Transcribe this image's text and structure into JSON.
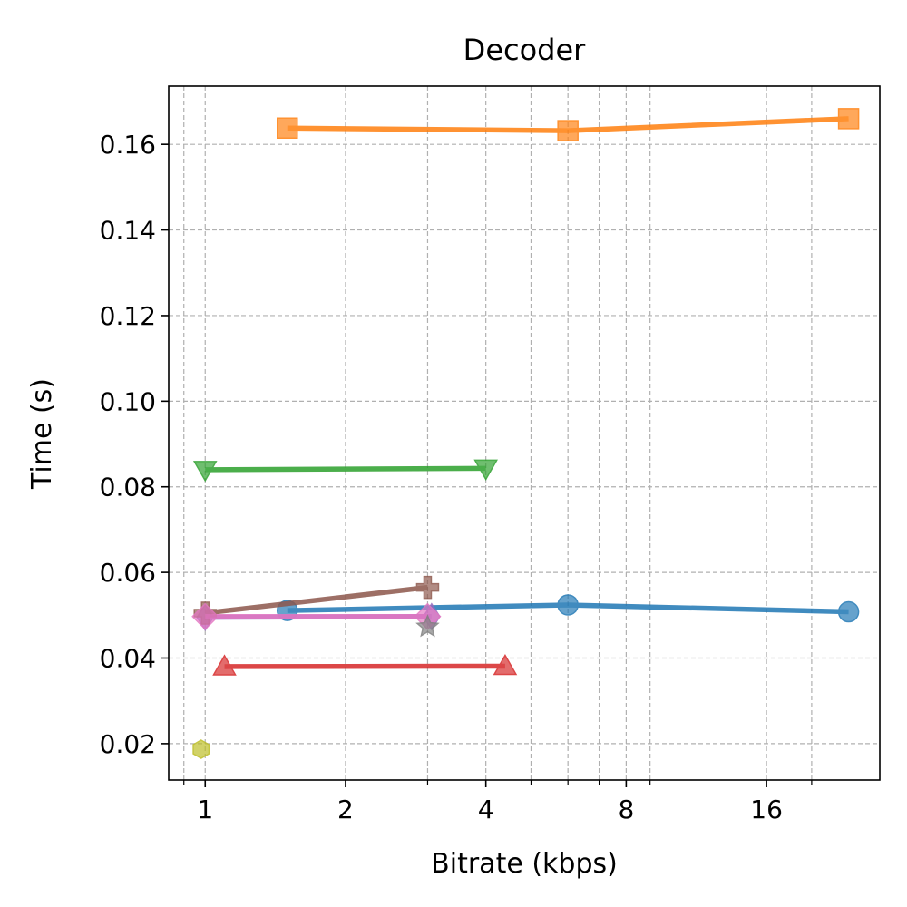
{
  "chart_data": {
    "type": "line",
    "title": "Decoder",
    "xlabel": "Bitrate (kbps)",
    "ylabel": "Time (s)",
    "xscale": "log2",
    "xlim": [
      0.835,
      28.0
    ],
    "ylim": [
      0.0115,
      0.1736
    ],
    "xticks": [
      1,
      2,
      4,
      8,
      16
    ],
    "xtick_labels": [
      "1",
      "2",
      "4",
      "8",
      "16"
    ],
    "xminor": [
      0.9,
      3,
      5,
      6,
      7,
      9,
      20
    ],
    "yticks": [
      0.02,
      0.04,
      0.06,
      0.08,
      0.1,
      0.12,
      0.14,
      0.16
    ],
    "ytick_labels": [
      "0.02",
      "0.04",
      "0.06",
      "0.08",
      "0.10",
      "0.12",
      "0.14",
      "0.16"
    ],
    "grid": true,
    "legend": "none",
    "series": [
      {
        "name": "blue",
        "color": "#1f77b4",
        "marker": "circle",
        "x": [
          1.5,
          6,
          24
        ],
        "y": [
          0.0511,
          0.0524,
          0.0508
        ]
      },
      {
        "name": "orange",
        "color": "#ff7f0e",
        "marker": "square",
        "x": [
          1.5,
          6,
          24
        ],
        "y": [
          0.1638,
          0.1632,
          0.166
        ]
      },
      {
        "name": "green",
        "color": "#2ca02c",
        "marker": "triangle-down",
        "x": [
          1,
          4
        ],
        "y": [
          0.084,
          0.0843
        ]
      },
      {
        "name": "red",
        "color": "#d62728",
        "marker": "triangle-up",
        "x": [
          1.1,
          4.4
        ],
        "y": [
          0.038,
          0.0381
        ]
      },
      {
        "name": "purple",
        "color": "#9467bd",
        "marker": "thin-diamond",
        "x": [
          1,
          3.06
        ],
        "y": [
          0.0495,
          0.0497
        ]
      },
      {
        "name": "brown",
        "color": "#8c564b",
        "marker": "plus",
        "x": [
          1,
          3
        ],
        "y": [
          0.0505,
          0.0565
        ]
      },
      {
        "name": "pink",
        "color": "#e377c2",
        "marker": "diamond",
        "x": [
          1,
          3
        ],
        "y": [
          0.0497,
          0.0497
        ]
      },
      {
        "name": "gray",
        "color": "#7f7f7f",
        "marker": "star",
        "x": [
          3
        ],
        "y": [
          0.0473
        ]
      },
      {
        "name": "olive",
        "color": "#bcbd22",
        "marker": "hexagon",
        "x": [
          0.98
        ],
        "y": [
          0.0187
        ]
      }
    ]
  }
}
